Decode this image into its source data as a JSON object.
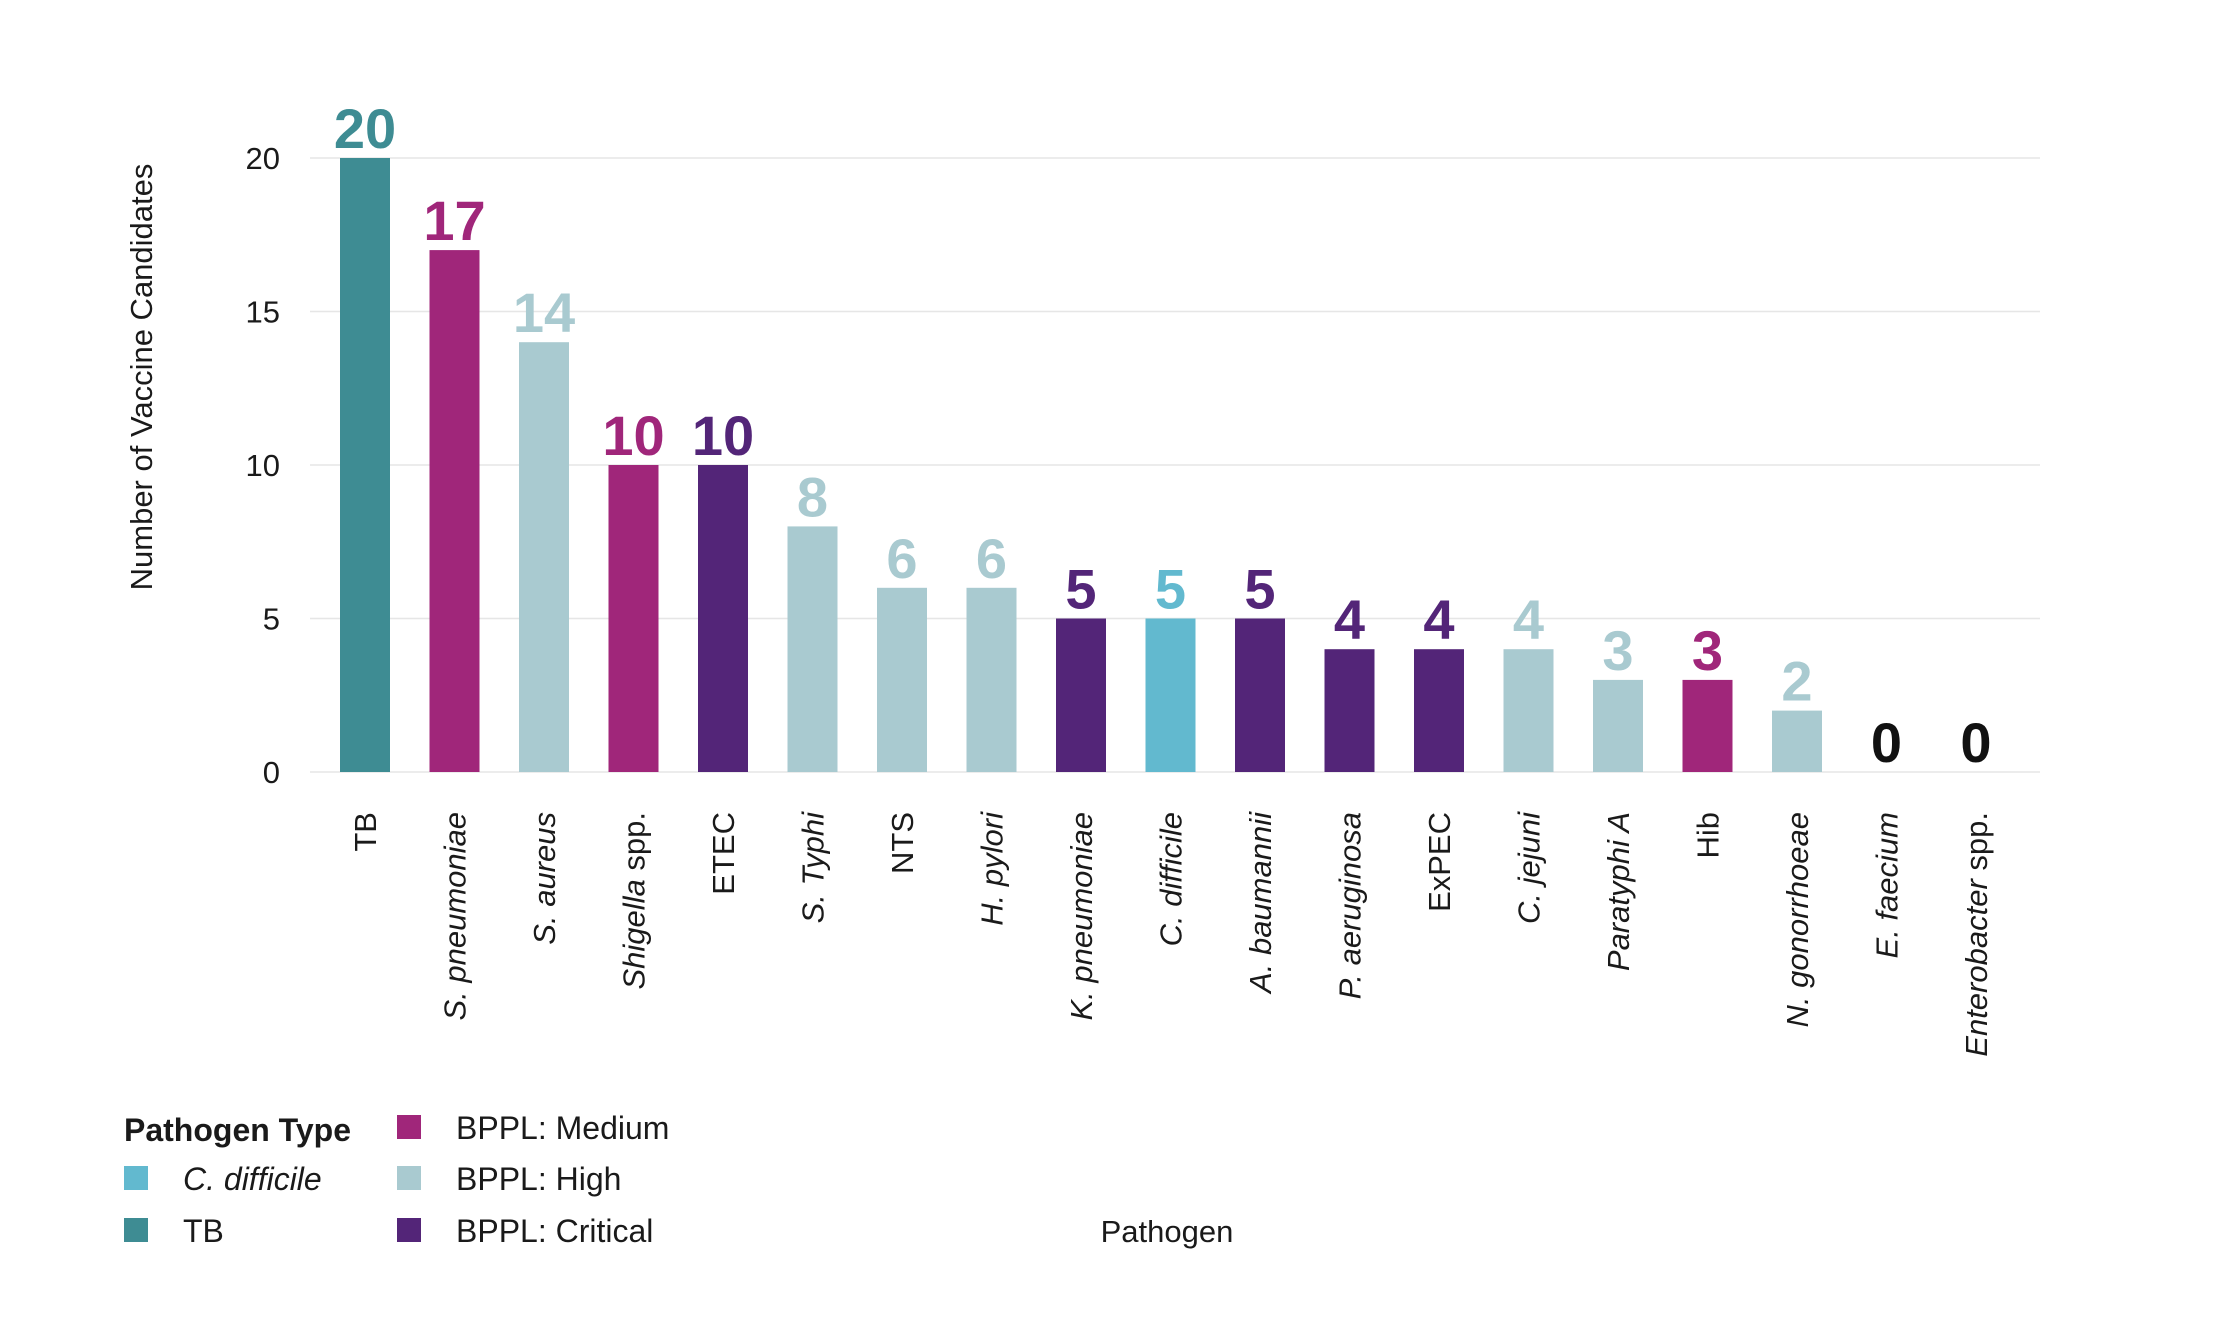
{
  "chart_data": {
    "type": "bar",
    "ylabel": "Number of Vaccine Candidates",
    "xlabel": "Pathogen",
    "ylim": [
      0,
      20
    ],
    "yticks": [
      0,
      5,
      10,
      15,
      20
    ],
    "grid": true,
    "legend": {
      "title": "Pathogen Type",
      "placement": "bottom-left",
      "entries": [
        {
          "key": "cdiff",
          "name": "C. difficile",
          "italic": true,
          "color": "#62B9CF"
        },
        {
          "key": "tb",
          "name": "TB",
          "italic": false,
          "color": "#3E8C93"
        },
        {
          "key": "medium",
          "name": "BPPL: Medium",
          "italic": false,
          "color": "#A0267A"
        },
        {
          "key": "high",
          "name": "BPPL: High",
          "italic": false,
          "color": "#A9CAD0"
        },
        {
          "key": "critical",
          "name": "BPPL: Critical",
          "italic": false,
          "color": "#532578"
        }
      ]
    },
    "categories": [
      {
        "label": "TB",
        "italic": "",
        "rest": "TB",
        "type": "tb",
        "value": 20
      },
      {
        "label": "S. pneumoniae",
        "italic": "S. pneumoniae",
        "rest": "",
        "type": "medium",
        "value": 17
      },
      {
        "label": "S. aureus",
        "italic": "S. aureus",
        "rest": "",
        "type": "high",
        "value": 14
      },
      {
        "label": "Shigella spp.",
        "italic": "Shigella",
        "rest": " spp.",
        "type": "medium",
        "value": 10
      },
      {
        "label": "ETEC",
        "italic": "",
        "rest": "ETEC",
        "type": "critical",
        "value": 10
      },
      {
        "label": "S. Typhi",
        "italic": "S. Typhi",
        "rest": "",
        "type": "high",
        "value": 8
      },
      {
        "label": "NTS",
        "italic": "",
        "rest": "NTS",
        "type": "high",
        "value": 6
      },
      {
        "label": "H. pylori",
        "italic": "H. pylori",
        "rest": "",
        "type": "high",
        "value": 6
      },
      {
        "label": "K. pneumoniae",
        "italic": "K. pneumoniae",
        "rest": "",
        "type": "critical",
        "value": 5
      },
      {
        "label": "C. difficile",
        "italic": "C. difficile",
        "rest": "",
        "type": "cdiff",
        "value": 5
      },
      {
        "label": "A. baumannii",
        "italic": "A. baumannii",
        "rest": "",
        "type": "critical",
        "value": 5
      },
      {
        "label": "P. aeruginosa",
        "italic": "P. aeruginosa",
        "rest": "",
        "type": "critical",
        "value": 4
      },
      {
        "label": "ExPEC",
        "italic": "",
        "rest": "ExPEC",
        "type": "critical",
        "value": 4
      },
      {
        "label": "C. jejuni",
        "italic": "C. jejuni",
        "rest": "",
        "type": "high",
        "value": 4
      },
      {
        "label": "Paratyphi A",
        "italic": "Paratyphi A",
        "rest": "",
        "type": "high",
        "value": 3
      },
      {
        "label": "Hib",
        "italic": "",
        "rest": "Hib",
        "type": "medium",
        "value": 3
      },
      {
        "label": "N. gonorrhoeae",
        "italic": "N. gonorrhoeae",
        "rest": "",
        "type": "high",
        "value": 2
      },
      {
        "label": "E. faecium",
        "italic": "E. faecium",
        "rest": "",
        "type": "none",
        "value": 0
      },
      {
        "label": "Enterobacter spp.",
        "italic": "Enterobacter",
        "rest": " spp.",
        "type": "none",
        "value": 0
      }
    ],
    "zero_label_color": "#111111",
    "gridline_color": "#E6E6E6"
  }
}
